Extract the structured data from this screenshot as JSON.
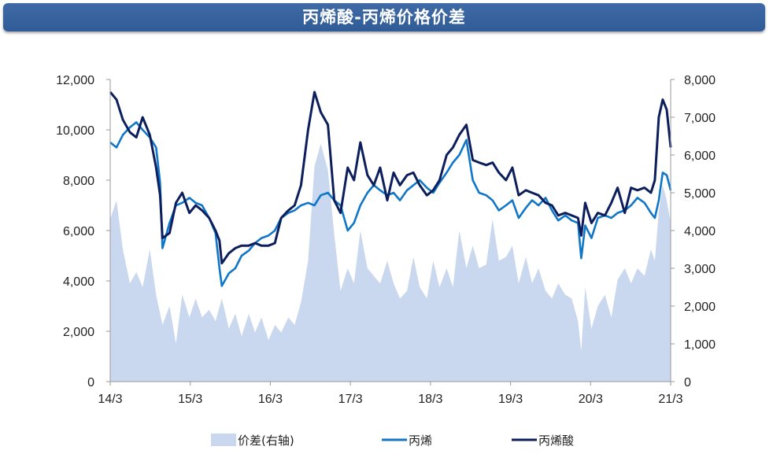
{
  "title": "丙烯酸-丙烯价格价差",
  "chart_data": {
    "type": "line",
    "title": "丙烯酸-丙烯价格价差",
    "x_ticks": [
      "14/3",
      "15/3",
      "16/3",
      "17/3",
      "18/3",
      "19/3",
      "20/3",
      "21/3"
    ],
    "left_axis": {
      "ylim": [
        0,
        12000
      ],
      "ticks": [
        "0",
        "2,000",
        "4,000",
        "6,000",
        "8,000",
        "10,000",
        "12,000"
      ]
    },
    "right_axis": {
      "ylim": [
        0,
        8000
      ],
      "ticks": [
        "0",
        "1,000",
        "2,000",
        "3,000",
        "4,000",
        "5,000",
        "6,000",
        "7,000",
        "8,000"
      ]
    },
    "x_range": [
      2014.17,
      2021.25
    ],
    "series": [
      {
        "name": "价差(右轴)",
        "type": "area",
        "axis": "right",
        "color": "#c9d8ee",
        "points": [
          [
            2014.17,
            4300
          ],
          [
            2014.25,
            4800
          ],
          [
            2014.33,
            3500
          ],
          [
            2014.42,
            2600
          ],
          [
            2014.5,
            2900
          ],
          [
            2014.58,
            2500
          ],
          [
            2014.67,
            3500
          ],
          [
            2014.75,
            2300
          ],
          [
            2014.83,
            1500
          ],
          [
            2014.92,
            2000
          ],
          [
            2015.0,
            1000
          ],
          [
            2015.08,
            2300
          ],
          [
            2015.17,
            1700
          ],
          [
            2015.25,
            2200
          ],
          [
            2015.33,
            1700
          ],
          [
            2015.42,
            1900
          ],
          [
            2015.5,
            1600
          ],
          [
            2015.58,
            2200
          ],
          [
            2015.67,
            1400
          ],
          [
            2015.75,
            1800
          ],
          [
            2015.83,
            1200
          ],
          [
            2015.92,
            1800
          ],
          [
            2016.0,
            1300
          ],
          [
            2016.08,
            1700
          ],
          [
            2016.17,
            1100
          ],
          [
            2016.25,
            1500
          ],
          [
            2016.33,
            1300
          ],
          [
            2016.42,
            1700
          ],
          [
            2016.5,
            1500
          ],
          [
            2016.58,
            2100
          ],
          [
            2016.67,
            3200
          ],
          [
            2016.75,
            5700
          ],
          [
            2016.83,
            6300
          ],
          [
            2016.92,
            5600
          ],
          [
            2017.0,
            3900
          ],
          [
            2017.08,
            2400
          ],
          [
            2017.17,
            3000
          ],
          [
            2017.25,
            2600
          ],
          [
            2017.33,
            4000
          ],
          [
            2017.42,
            3000
          ],
          [
            2017.5,
            2800
          ],
          [
            2017.58,
            2600
          ],
          [
            2017.67,
            3200
          ],
          [
            2017.75,
            2600
          ],
          [
            2017.83,
            2200
          ],
          [
            2017.92,
            2400
          ],
          [
            2018.0,
            3300
          ],
          [
            2018.08,
            2500
          ],
          [
            2018.17,
            2200
          ],
          [
            2018.25,
            3200
          ],
          [
            2018.33,
            2500
          ],
          [
            2018.42,
            3000
          ],
          [
            2018.5,
            2500
          ],
          [
            2018.58,
            4000
          ],
          [
            2018.67,
            3000
          ],
          [
            2018.75,
            3600
          ],
          [
            2018.83,
            3000
          ],
          [
            2018.92,
            3100
          ],
          [
            2019.0,
            4300
          ],
          [
            2019.08,
            3200
          ],
          [
            2019.17,
            3300
          ],
          [
            2019.25,
            3600
          ],
          [
            2019.33,
            2600
          ],
          [
            2019.42,
            3300
          ],
          [
            2019.5,
            2600
          ],
          [
            2019.58,
            3000
          ],
          [
            2019.67,
            2400
          ],
          [
            2019.75,
            2200
          ],
          [
            2019.83,
            2600
          ],
          [
            2019.92,
            2300
          ],
          [
            2020.0,
            2200
          ],
          [
            2020.08,
            1600
          ],
          [
            2020.12,
            800
          ],
          [
            2020.17,
            2500
          ],
          [
            2020.25,
            1400
          ],
          [
            2020.33,
            2000
          ],
          [
            2020.42,
            2300
          ],
          [
            2020.5,
            1700
          ],
          [
            2020.58,
            2700
          ],
          [
            2020.67,
            3000
          ],
          [
            2020.75,
            2600
          ],
          [
            2020.83,
            3000
          ],
          [
            2020.92,
            2800
          ],
          [
            2021.0,
            3500
          ],
          [
            2021.05,
            3200
          ],
          [
            2021.1,
            4500
          ],
          [
            2021.15,
            5200
          ],
          [
            2021.2,
            4800
          ],
          [
            2021.25,
            4200
          ]
        ]
      },
      {
        "name": "丙烯",
        "type": "line",
        "axis": "left",
        "color": "#0f76c8",
        "points": [
          [
            2014.17,
            9500
          ],
          [
            2014.25,
            9300
          ],
          [
            2014.33,
            9800
          ],
          [
            2014.42,
            10100
          ],
          [
            2014.5,
            10300
          ],
          [
            2014.58,
            10000
          ],
          [
            2014.67,
            9700
          ],
          [
            2014.75,
            9300
          ],
          [
            2014.8,
            7900
          ],
          [
            2014.83,
            5300
          ],
          [
            2014.92,
            6300
          ],
          [
            2015.0,
            7000
          ],
          [
            2015.08,
            7100
          ],
          [
            2015.17,
            7300
          ],
          [
            2015.25,
            7100
          ],
          [
            2015.33,
            7000
          ],
          [
            2015.42,
            6500
          ],
          [
            2015.5,
            5900
          ],
          [
            2015.55,
            4500
          ],
          [
            2015.58,
            3800
          ],
          [
            2015.67,
            4300
          ],
          [
            2015.75,
            4500
          ],
          [
            2015.83,
            5000
          ],
          [
            2015.92,
            5200
          ],
          [
            2016.0,
            5500
          ],
          [
            2016.08,
            5700
          ],
          [
            2016.17,
            5800
          ],
          [
            2016.25,
            6000
          ],
          [
            2016.33,
            6500
          ],
          [
            2016.42,
            6700
          ],
          [
            2016.5,
            6800
          ],
          [
            2016.58,
            7000
          ],
          [
            2016.67,
            7100
          ],
          [
            2016.75,
            7000
          ],
          [
            2016.83,
            7400
          ],
          [
            2016.92,
            7500
          ],
          [
            2017.0,
            7200
          ],
          [
            2017.08,
            7000
          ],
          [
            2017.17,
            6000
          ],
          [
            2017.25,
            6300
          ],
          [
            2017.33,
            7000
          ],
          [
            2017.42,
            7500
          ],
          [
            2017.5,
            7800
          ],
          [
            2017.58,
            7600
          ],
          [
            2017.67,
            7400
          ],
          [
            2017.75,
            7500
          ],
          [
            2017.83,
            7200
          ],
          [
            2017.92,
            7600
          ],
          [
            2018.0,
            7800
          ],
          [
            2018.08,
            8000
          ],
          [
            2018.17,
            7700
          ],
          [
            2018.25,
            7500
          ],
          [
            2018.33,
            7900
          ],
          [
            2018.42,
            8300
          ],
          [
            2018.5,
            8700
          ],
          [
            2018.58,
            9000
          ],
          [
            2018.67,
            9600
          ],
          [
            2018.75,
            8000
          ],
          [
            2018.83,
            7500
          ],
          [
            2018.92,
            7400
          ],
          [
            2019.0,
            7200
          ],
          [
            2019.08,
            6800
          ],
          [
            2019.17,
            7000
          ],
          [
            2019.25,
            7200
          ],
          [
            2019.33,
            6500
          ],
          [
            2019.42,
            6900
          ],
          [
            2019.5,
            7200
          ],
          [
            2019.58,
            7000
          ],
          [
            2019.67,
            7300
          ],
          [
            2019.75,
            6800
          ],
          [
            2019.83,
            6400
          ],
          [
            2019.92,
            6600
          ],
          [
            2020.0,
            6400
          ],
          [
            2020.08,
            6300
          ],
          [
            2020.12,
            4900
          ],
          [
            2020.17,
            6200
          ],
          [
            2020.25,
            5700
          ],
          [
            2020.33,
            6500
          ],
          [
            2020.42,
            6600
          ],
          [
            2020.5,
            6500
          ],
          [
            2020.58,
            6700
          ],
          [
            2020.67,
            6800
          ],
          [
            2020.75,
            7000
          ],
          [
            2020.83,
            7300
          ],
          [
            2020.92,
            7100
          ],
          [
            2021.0,
            6700
          ],
          [
            2021.05,
            6500
          ],
          [
            2021.1,
            7200
          ],
          [
            2021.15,
            8300
          ],
          [
            2021.2,
            8200
          ],
          [
            2021.25,
            7600
          ]
        ]
      },
      {
        "name": "丙烯酸",
        "type": "line",
        "axis": "left",
        "color": "#0c1f5c",
        "points": [
          [
            2014.17,
            11500
          ],
          [
            2014.25,
            11200
          ],
          [
            2014.33,
            10400
          ],
          [
            2014.42,
            9900
          ],
          [
            2014.5,
            9700
          ],
          [
            2014.58,
            10500
          ],
          [
            2014.67,
            9800
          ],
          [
            2014.75,
            8500
          ],
          [
            2014.8,
            7400
          ],
          [
            2014.83,
            5700
          ],
          [
            2014.92,
            5900
          ],
          [
            2015.0,
            7100
          ],
          [
            2015.08,
            7500
          ],
          [
            2015.17,
            6700
          ],
          [
            2015.25,
            7000
          ],
          [
            2015.33,
            6800
          ],
          [
            2015.42,
            6500
          ],
          [
            2015.5,
            6000
          ],
          [
            2015.55,
            5600
          ],
          [
            2015.58,
            4700
          ],
          [
            2015.67,
            5100
          ],
          [
            2015.75,
            5300
          ],
          [
            2015.83,
            5400
          ],
          [
            2015.92,
            5400
          ],
          [
            2016.0,
            5500
          ],
          [
            2016.08,
            5400
          ],
          [
            2016.17,
            5400
          ],
          [
            2016.25,
            5500
          ],
          [
            2016.33,
            6500
          ],
          [
            2016.42,
            6800
          ],
          [
            2016.5,
            7000
          ],
          [
            2016.58,
            7800
          ],
          [
            2016.67,
            10000
          ],
          [
            2016.75,
            11500
          ],
          [
            2016.83,
            10700
          ],
          [
            2016.92,
            10200
          ],
          [
            2017.0,
            7200
          ],
          [
            2017.08,
            6700
          ],
          [
            2017.17,
            8500
          ],
          [
            2017.25,
            8000
          ],
          [
            2017.33,
            9500
          ],
          [
            2017.42,
            8200
          ],
          [
            2017.5,
            7800
          ],
          [
            2017.58,
            8500
          ],
          [
            2017.67,
            7200
          ],
          [
            2017.75,
            8300
          ],
          [
            2017.83,
            7800
          ],
          [
            2017.92,
            8200
          ],
          [
            2018.0,
            8300
          ],
          [
            2018.08,
            7800
          ],
          [
            2018.17,
            7400
          ],
          [
            2018.25,
            7600
          ],
          [
            2018.33,
            8000
          ],
          [
            2018.42,
            9000
          ],
          [
            2018.5,
            9300
          ],
          [
            2018.58,
            9800
          ],
          [
            2018.67,
            10200
          ],
          [
            2018.75,
            8800
          ],
          [
            2018.83,
            8700
          ],
          [
            2018.92,
            8600
          ],
          [
            2019.0,
            8700
          ],
          [
            2019.08,
            8300
          ],
          [
            2019.17,
            8000
          ],
          [
            2019.25,
            8500
          ],
          [
            2019.33,
            7400
          ],
          [
            2019.42,
            7600
          ],
          [
            2019.5,
            7500
          ],
          [
            2019.58,
            7400
          ],
          [
            2019.67,
            7100
          ],
          [
            2019.75,
            7000
          ],
          [
            2019.83,
            6600
          ],
          [
            2019.92,
            6700
          ],
          [
            2020.0,
            6600
          ],
          [
            2020.08,
            6500
          ],
          [
            2020.12,
            5800
          ],
          [
            2020.17,
            7100
          ],
          [
            2020.25,
            6300
          ],
          [
            2020.33,
            6700
          ],
          [
            2020.42,
            6600
          ],
          [
            2020.5,
            7100
          ],
          [
            2020.58,
            7700
          ],
          [
            2020.67,
            6700
          ],
          [
            2020.75,
            7700
          ],
          [
            2020.83,
            7600
          ],
          [
            2020.92,
            7700
          ],
          [
            2021.0,
            7500
          ],
          [
            2021.05,
            8000
          ],
          [
            2021.1,
            10500
          ],
          [
            2021.15,
            11200
          ],
          [
            2021.2,
            10800
          ],
          [
            2021.25,
            9300
          ]
        ]
      }
    ],
    "legend": [
      {
        "label": "价差(右轴)",
        "kind": "area",
        "color": "#c9d8ee"
      },
      {
        "label": "丙烯",
        "kind": "line",
        "color": "#0f76c8"
      },
      {
        "label": "丙烯酸",
        "kind": "line",
        "color": "#0c1f5c"
      }
    ],
    "legend_position": "bottom"
  }
}
